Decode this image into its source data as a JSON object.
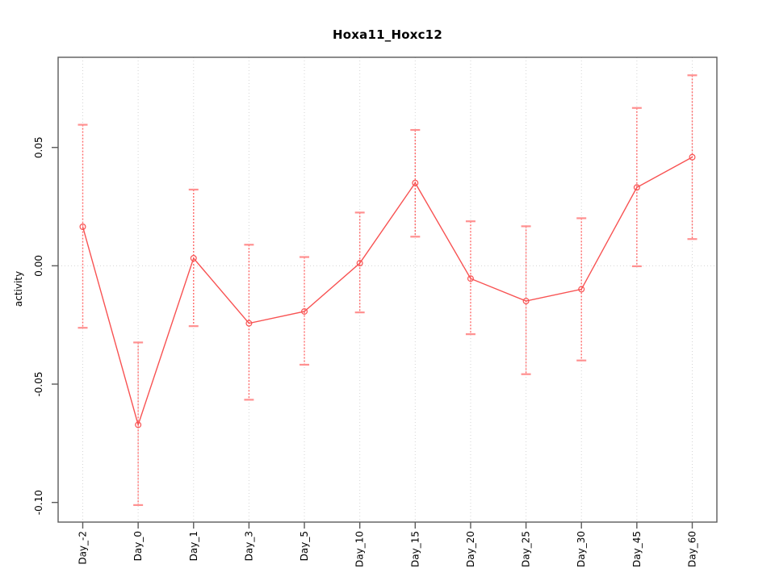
{
  "figure": {
    "title": "Hoxa11_Hoxc12",
    "ylabel": "activity"
  },
  "chart_data": {
    "type": "line",
    "title": "Hoxa11_Hoxc12",
    "xlabel": "",
    "ylabel": "activity",
    "categories": [
      "Day_-2",
      "Day_0",
      "Day_1",
      "Day_3",
      "Day_5",
      "Day_10",
      "Day_15",
      "Day_20",
      "Day_25",
      "Day_30",
      "Day_45",
      "Day_60"
    ],
    "series": [
      {
        "name": "activity",
        "values": [
          0.0165,
          -0.0672,
          0.0032,
          -0.0243,
          -0.0193,
          0.0011,
          0.035,
          -0.0054,
          -0.0149,
          -0.0099,
          0.0331,
          0.0459
        ],
        "upper": [
          0.0596,
          -0.0324,
          0.0322,
          0.0089,
          0.0037,
          0.0225,
          0.0574,
          0.0188,
          0.0167,
          0.0201,
          0.0667,
          0.0805
        ],
        "lower": [
          -0.0262,
          -0.1011,
          -0.0255,
          -0.0566,
          -0.0418,
          -0.0197,
          0.0123,
          -0.0289,
          -0.0458,
          -0.04,
          -0.0002,
          0.0113
        ]
      }
    ],
    "yticks": {
      "values": [
        0.05,
        0,
        -0.05,
        -0.1
      ],
      "labels": [
        "0.05",
        "0.00",
        "-0.05",
        "-0.10"
      ]
    },
    "ylim": [
      -0.1083,
      0.0881
    ],
    "grid": {
      "vertical_at_categories": true,
      "horizontal_zero_line": true,
      "style": "dotted"
    },
    "legend": "none",
    "marker": "open-circle",
    "colors": {
      "series_line": "#f85252",
      "error_bar": "#ff6b6b",
      "error_cap": "#ff9090",
      "grid": "#d4d4d4",
      "axis": "#5a5a5a",
      "text": "#000000"
    }
  }
}
